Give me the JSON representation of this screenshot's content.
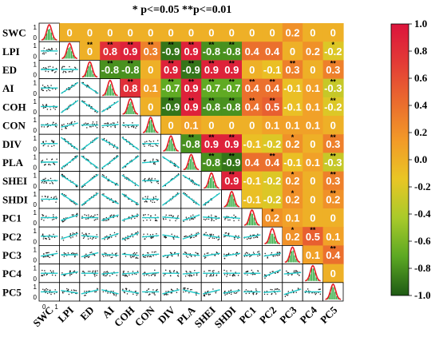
{
  "chart_data": {
    "type": "heatmap",
    "title": "* p<=0.05  **p<=0.01",
    "variables": [
      "SWC",
      "LPI",
      "ED",
      "AI",
      "COH",
      "CON",
      "DIV",
      "PLA",
      "SHEI",
      "SHDI",
      "PC1",
      "PC2",
      "PC3",
      "PC4",
      "PC5"
    ],
    "upper_labels": [
      [
        "",
        "0",
        "0",
        "0",
        "0",
        "0",
        "0",
        "0",
        "0",
        "0",
        "0",
        "0",
        "0.2",
        "0",
        "0"
      ],
      [
        "",
        "",
        "0",
        "0.8",
        "0.9",
        "0.3",
        "-0.9",
        "0.9",
        "-0.8",
        "-0.8",
        "0.4",
        "0.4",
        "0",
        "0.2",
        "-0.2"
      ],
      [
        "",
        "",
        "",
        "-0.8",
        "-0.8",
        "0",
        "0.9",
        "-0.9",
        "0.9",
        "0.9",
        "0",
        "-0.1",
        "0.3",
        "0",
        "0.3"
      ],
      [
        "",
        "",
        "",
        "",
        "0.8",
        "0.1",
        "-0.7",
        "0.9",
        "-0.7",
        "-0.7",
        "0.4",
        "0.4",
        "-0.1",
        "0.1",
        "-0.3"
      ],
      [
        "",
        "",
        "",
        "",
        "",
        "0",
        "-0.9",
        "0.9",
        "-0.8",
        "-0.8",
        "0.4",
        "0.5",
        "-0.1",
        "0.1",
        "-0.2"
      ],
      [
        "",
        "",
        "",
        "",
        "",
        "",
        "0",
        "0.1",
        "0",
        "0",
        "0",
        "0.1",
        "0.1",
        "0.1",
        "0"
      ],
      [
        "",
        "",
        "",
        "",
        "",
        "",
        "",
        "-0.8",
        "0.9",
        "0.9",
        "-0.1",
        "-0.2",
        "0.2",
        "0",
        "0.3"
      ],
      [
        "",
        "",
        "",
        "",
        "",
        "",
        "",
        "",
        "-0.8",
        "-0.9",
        "0.4",
        "0.4",
        "-0.1",
        "0.1",
        "-0.3"
      ],
      [
        "",
        "",
        "",
        "",
        "",
        "",
        "",
        "",
        "",
        "0.9",
        "-0.1",
        "-0.2",
        "0.2",
        "0",
        "0.3"
      ],
      [
        "",
        "",
        "",
        "",
        "",
        "",
        "",
        "",
        "",
        "",
        "-0.1",
        "-0.2",
        "0.2",
        "0",
        "0.2"
      ],
      [
        "",
        "",
        "",
        "",
        "",
        "",
        "",
        "",
        "",
        "",
        "",
        "0.2",
        "0.1",
        "0",
        "0"
      ],
      [
        "",
        "",
        "",
        "",
        "",
        "",
        "",
        "",
        "",
        "",
        "",
        "",
        "0.2",
        "0.5",
        "0.1"
      ],
      [
        "",
        "",
        "",
        "",
        "",
        "",
        "",
        "",
        "",
        "",
        "",
        "",
        "",
        "0.1",
        "0.4"
      ],
      [
        "",
        "",
        "",
        "",
        "",
        "",
        "",
        "",
        "",
        "",
        "",
        "",
        "",
        "",
        "0"
      ],
      [
        "",
        "",
        "",
        "",
        "",
        "",
        "",
        "",
        "",
        "",
        "",
        "",
        "",
        "",
        ""
      ]
    ],
    "signif": [
      [
        "",
        "",
        "",
        "",
        "",
        "",
        "",
        "",
        "",
        "",
        "",
        "",
        "",
        "",
        ""
      ],
      [
        "",
        "",
        "**",
        "**",
        "**",
        "**",
        "**",
        "**",
        "**",
        "**",
        "",
        "",
        "",
        "",
        "*"
      ],
      [
        "",
        "",
        "",
        "**",
        "**",
        "",
        "**",
        "**",
        "**",
        "**",
        "",
        "",
        "**",
        "",
        "**"
      ],
      [
        "",
        "",
        "",
        "",
        "**",
        "",
        "**",
        "**",
        "**",
        "**",
        "**",
        "**",
        "",
        "",
        "**"
      ],
      [
        "",
        "",
        "",
        "",
        "",
        "",
        "**",
        "**",
        "**",
        "**",
        "**",
        "**",
        "",
        "",
        "**"
      ],
      [
        "",
        "",
        "",
        "",
        "",
        "",
        "",
        "",
        "",
        "",
        "",
        "",
        "",
        "",
        ""
      ],
      [
        "",
        "",
        "",
        "",
        "",
        "",
        "",
        "**",
        "**",
        "**",
        "",
        "",
        "*",
        "",
        "**"
      ],
      [
        "",
        "",
        "",
        "",
        "",
        "",
        "",
        "",
        "**",
        "**",
        "",
        "**",
        "",
        "",
        "**"
      ],
      [
        "",
        "",
        "",
        "",
        "",
        "",
        "",
        "",
        "",
        "**",
        "",
        "",
        "*",
        "",
        "**"
      ],
      [
        "",
        "",
        "",
        "",
        "",
        "",
        "",
        "",
        "",
        "",
        "",
        "",
        "*",
        "",
        "**"
      ],
      [
        "",
        "",
        "",
        "",
        "",
        "",
        "",
        "",
        "",
        "",
        "",
        "*",
        "",
        "",
        ""
      ],
      [
        "",
        "",
        "",
        "",
        "",
        "",
        "",
        "",
        "",
        "",
        "",
        "",
        "*",
        "**",
        ""
      ],
      [
        "",
        "",
        "",
        "",
        "",
        "",
        "",
        "",
        "",
        "",
        "",
        "",
        "",
        "",
        "**"
      ],
      [
        "",
        "",
        "",
        "",
        "",
        "",
        "",
        "",
        "",
        "",
        "",
        "",
        "",
        "",
        ""
      ],
      [
        "",
        "",
        "",
        "",
        "",
        "",
        "",
        "",
        "",
        "",
        "",
        "",
        "",
        "",
        ""
      ]
    ],
    "axis_tick_labels": [
      "0",
      "1"
    ],
    "colorbar": {
      "range": [
        -1.0,
        1.0
      ],
      "ticks": [
        "1.0",
        "0.8",
        "0.6",
        "0.4",
        "0.2",
        "0.0",
        "-0.2",
        "-0.4",
        "-0.6",
        "-0.8",
        "-1.0"
      ],
      "stops": [
        "#1e5a14",
        "#5ca823",
        "#a9ca2a",
        "#e9c625",
        "#f29a28",
        "#ea6b2e",
        "#e33b36",
        "#dc143c"
      ]
    },
    "colors": {
      "histogram": "#2aa83a",
      "density": "#e51c23",
      "fit_line": "#1ec8c8",
      "points": "#222222"
    },
    "legend_placement": "right",
    "grid": false
  }
}
